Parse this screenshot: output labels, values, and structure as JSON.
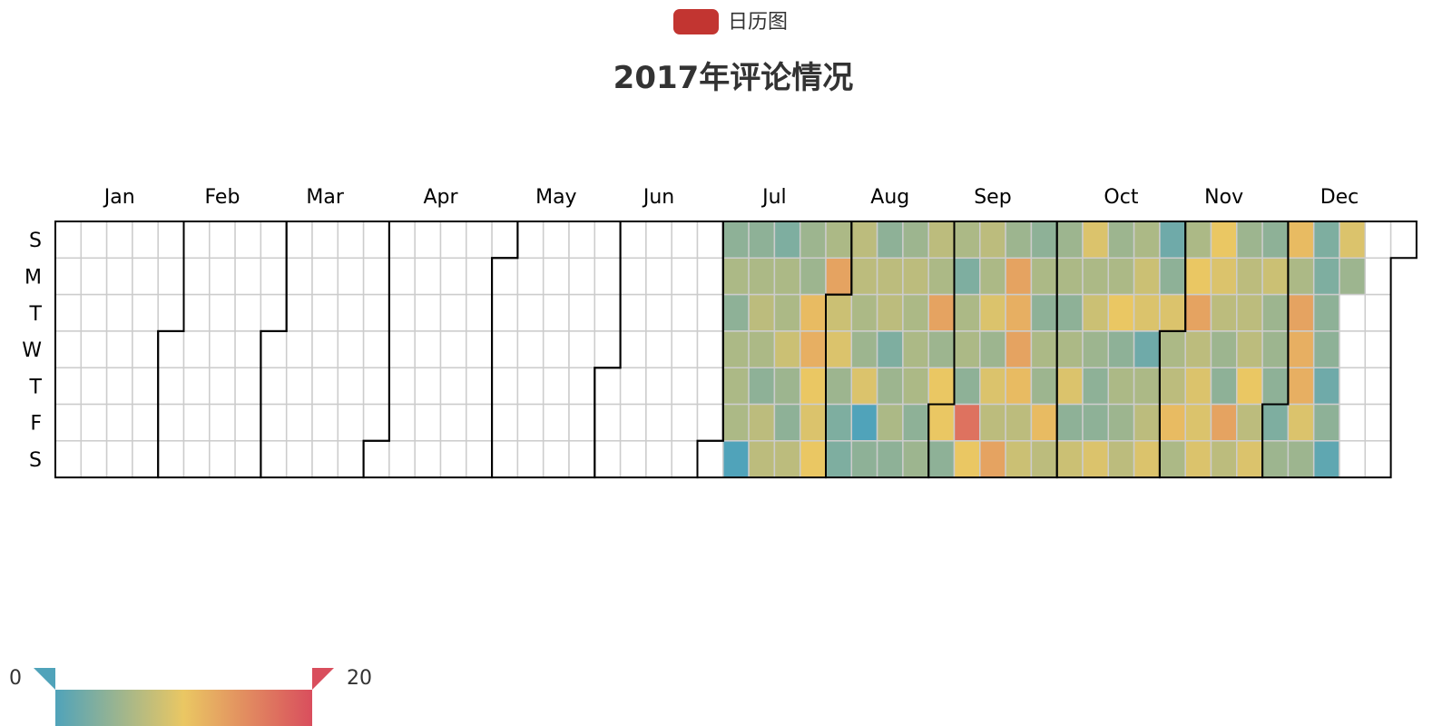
{
  "legend": {
    "label": "日历图",
    "color": "#c23531"
  },
  "chart_data": {
    "type": "heatmap",
    "title": "2017年评论情况",
    "range": "2017",
    "start_date": "2017-01-01",
    "end_date": "2017-12-31",
    "first_data_date": "2017-07-02",
    "month_labels": [
      "Jan",
      "Feb",
      "Mar",
      "Apr",
      "May",
      "Jun",
      "Jul",
      "Aug",
      "Sep",
      "Oct",
      "Nov",
      "Dec"
    ],
    "day_labels": [
      "S",
      "M",
      "T",
      "W",
      "T",
      "F",
      "S"
    ],
    "visual_map": {
      "min": 0,
      "max": 20,
      "min_label": "0",
      "max_label": "20",
      "colors": [
        "#50a3ba",
        "#eac763",
        "#d94e5d"
      ]
    },
    "values": [
      4,
      6,
      4,
      6,
      6,
      6,
      0,
      4,
      6,
      7,
      6,
      4,
      7,
      7,
      3,
      6,
      6,
      8,
      5,
      4,
      7,
      5,
      5,
      11,
      12,
      10,
      9,
      10,
      6,
      13,
      8,
      9,
      5,
      3,
      3,
      7,
      7,
      6,
      5,
      9,
      0,
      4,
      4,
      7,
      7,
      3,
      5,
      6,
      4,
      5,
      7,
      6,
      6,
      6,
      4,
      5,
      7,
      6,
      13,
      5,
      10,
      10,
      4,
      6,
      3,
      6,
      6,
      4,
      17,
      10,
      7,
      6,
      9,
      5,
      9,
      7,
      13,
      5,
      13,
      12,
      13,
      11,
      7,
      8,
      4,
      6,
      4,
      6,
      5,
      11,
      7,
      5,
      6,
      4,
      6,
      9,
      4,
      8,
      9,
      6,
      8,
      5,
      4,
      4,
      9,
      5,
      6,
      10,
      4,
      6,
      5,
      7,
      6,
      8,
      9,
      2,
      6,
      7,
      9,
      2,
      4,
      9,
      6,
      7,
      11,
      6,
      6,
      10,
      13,
      7,
      9,
      9,
      9,
      10,
      9,
      7,
      5,
      4,
      13,
      7,
      5,
      7,
      7,
      7,
      10,
      7,
      9,
      4,
      8,
      5,
      5,
      4,
      3,
      5,
      11,
      6,
      13,
      12,
      12,
      9,
      5,
      3,
      3,
      4,
      4,
      2,
      4,
      1,
      9,
      5
    ]
  }
}
